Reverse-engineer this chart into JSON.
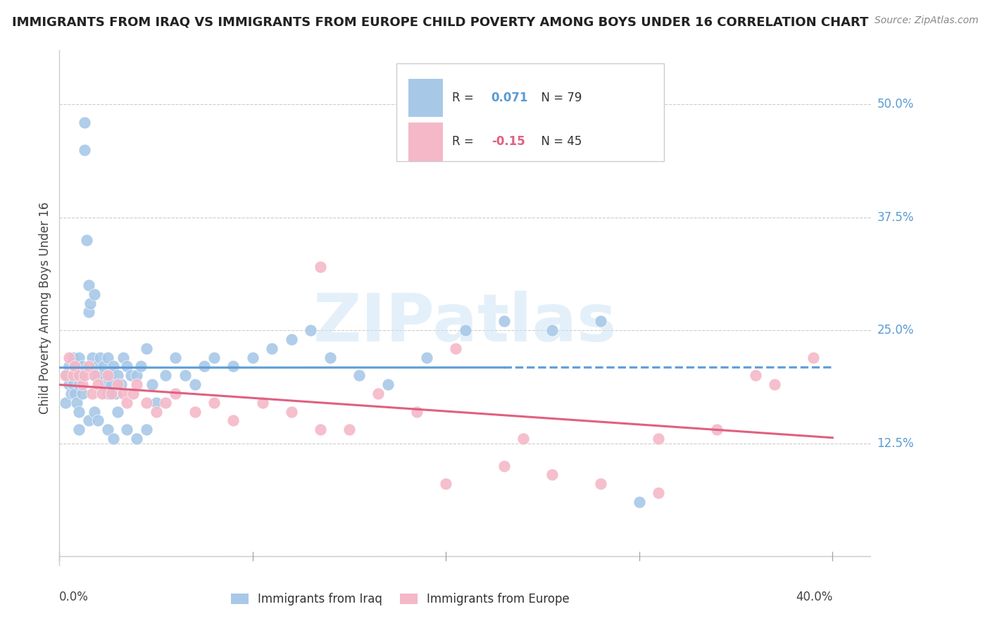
{
  "title": "IMMIGRANTS FROM IRAQ VS IMMIGRANTS FROM EUROPE CHILD POVERTY AMONG BOYS UNDER 16 CORRELATION CHART",
  "source": "Source: ZipAtlas.com",
  "ylabel": "Child Poverty Among Boys Under 16",
  "R_iraq": 0.071,
  "N_iraq": 79,
  "R_europe": -0.15,
  "N_europe": 45,
  "color_iraq": "#a8c8e8",
  "color_europe": "#f4b8c8",
  "line_color_iraq": "#5b9bd5",
  "line_color_europe": "#e06080",
  "ytick_vals": [
    0.0,
    0.125,
    0.25,
    0.375,
    0.5
  ],
  "ytick_labels": [
    "",
    "12.5%",
    "25.0%",
    "37.5%",
    "50.0%"
  ],
  "xlim": [
    0.0,
    0.42
  ],
  "ylim": [
    -0.01,
    0.56
  ],
  "plot_xlim": [
    0.0,
    0.4
  ],
  "iraq_x": [
    0.003,
    0.004,
    0.005,
    0.005,
    0.006,
    0.006,
    0.007,
    0.007,
    0.008,
    0.008,
    0.009,
    0.009,
    0.01,
    0.01,
    0.01,
    0.011,
    0.012,
    0.012,
    0.013,
    0.013,
    0.014,
    0.015,
    0.015,
    0.016,
    0.017,
    0.018,
    0.018,
    0.019,
    0.02,
    0.021,
    0.022,
    0.023,
    0.024,
    0.025,
    0.025,
    0.026,
    0.027,
    0.028,
    0.029,
    0.03,
    0.032,
    0.033,
    0.035,
    0.037,
    0.04,
    0.042,
    0.045,
    0.048,
    0.05,
    0.055,
    0.06,
    0.065,
    0.07,
    0.075,
    0.08,
    0.09,
    0.1,
    0.11,
    0.12,
    0.13,
    0.14,
    0.155,
    0.17,
    0.19,
    0.21,
    0.23,
    0.255,
    0.28,
    0.01,
    0.015,
    0.018,
    0.02,
    0.025,
    0.028,
    0.03,
    0.035,
    0.04,
    0.045,
    0.3
  ],
  "iraq_y": [
    0.17,
    0.2,
    0.21,
    0.19,
    0.2,
    0.18,
    0.22,
    0.19,
    0.21,
    0.18,
    0.2,
    0.17,
    0.22,
    0.19,
    0.16,
    0.2,
    0.21,
    0.18,
    0.48,
    0.45,
    0.35,
    0.3,
    0.27,
    0.28,
    0.22,
    0.29,
    0.2,
    0.21,
    0.2,
    0.22,
    0.2,
    0.21,
    0.19,
    0.22,
    0.18,
    0.2,
    0.19,
    0.21,
    0.18,
    0.2,
    0.19,
    0.22,
    0.21,
    0.2,
    0.2,
    0.21,
    0.23,
    0.19,
    0.17,
    0.2,
    0.22,
    0.2,
    0.19,
    0.21,
    0.22,
    0.21,
    0.22,
    0.23,
    0.24,
    0.25,
    0.22,
    0.2,
    0.19,
    0.22,
    0.25,
    0.26,
    0.25,
    0.26,
    0.14,
    0.15,
    0.16,
    0.15,
    0.14,
    0.13,
    0.16,
    0.14,
    0.13,
    0.14,
    0.06
  ],
  "europe_x": [
    0.003,
    0.005,
    0.007,
    0.008,
    0.01,
    0.012,
    0.013,
    0.015,
    0.017,
    0.018,
    0.02,
    0.022,
    0.025,
    0.027,
    0.03,
    0.033,
    0.035,
    0.038,
    0.04,
    0.045,
    0.05,
    0.055,
    0.06,
    0.07,
    0.08,
    0.09,
    0.105,
    0.12,
    0.135,
    0.15,
    0.165,
    0.185,
    0.205,
    0.23,
    0.255,
    0.28,
    0.31,
    0.34,
    0.37,
    0.39,
    0.135,
    0.2,
    0.24,
    0.31,
    0.36
  ],
  "europe_y": [
    0.2,
    0.22,
    0.2,
    0.21,
    0.2,
    0.19,
    0.2,
    0.21,
    0.18,
    0.2,
    0.19,
    0.18,
    0.2,
    0.18,
    0.19,
    0.18,
    0.17,
    0.18,
    0.19,
    0.17,
    0.16,
    0.17,
    0.18,
    0.16,
    0.17,
    0.15,
    0.17,
    0.16,
    0.32,
    0.14,
    0.18,
    0.16,
    0.23,
    0.1,
    0.09,
    0.08,
    0.07,
    0.14,
    0.19,
    0.22,
    0.14,
    0.08,
    0.13,
    0.13,
    0.2
  ]
}
